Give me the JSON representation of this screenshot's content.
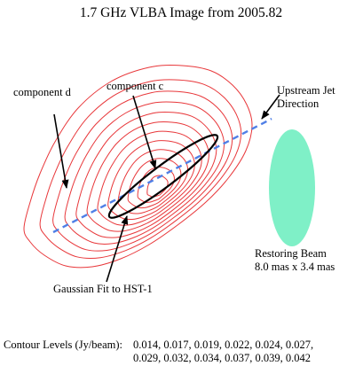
{
  "title": "1.7 GHz VLBA Image from 2005.82",
  "labels": {
    "component_d": "component d",
    "component_c": "component c",
    "jet_direction_line1": "Upstream Jet",
    "jet_direction_line2": "Direction",
    "gaussian_fit": "Gaussian Fit to HST-1",
    "beam_line1": "Restoring Beam",
    "beam_line2": "8.0 mas x 3.4 mas"
  },
  "contour_levels": {
    "prefix": "Contour Levels (Jy/beam):",
    "line1": "0.014, 0.017, 0.019, 0.022, 0.024, 0.027,",
    "line2": "0.029, 0.032, 0.034, 0.037, 0.039, 0.042",
    "values_jy_per_beam": [
      0.014,
      0.017,
      0.019,
      0.022,
      0.024,
      0.027,
      0.029,
      0.032,
      0.034,
      0.037,
      0.039,
      0.042
    ]
  },
  "restoring_beam": {
    "major_mas": 8.0,
    "minor_mas": 3.4
  },
  "colors": {
    "contour": "#e8373a",
    "jet_line": "#4f7fe6",
    "beam_fill": "#7ff0c7",
    "fit_outline": "#000000"
  }
}
